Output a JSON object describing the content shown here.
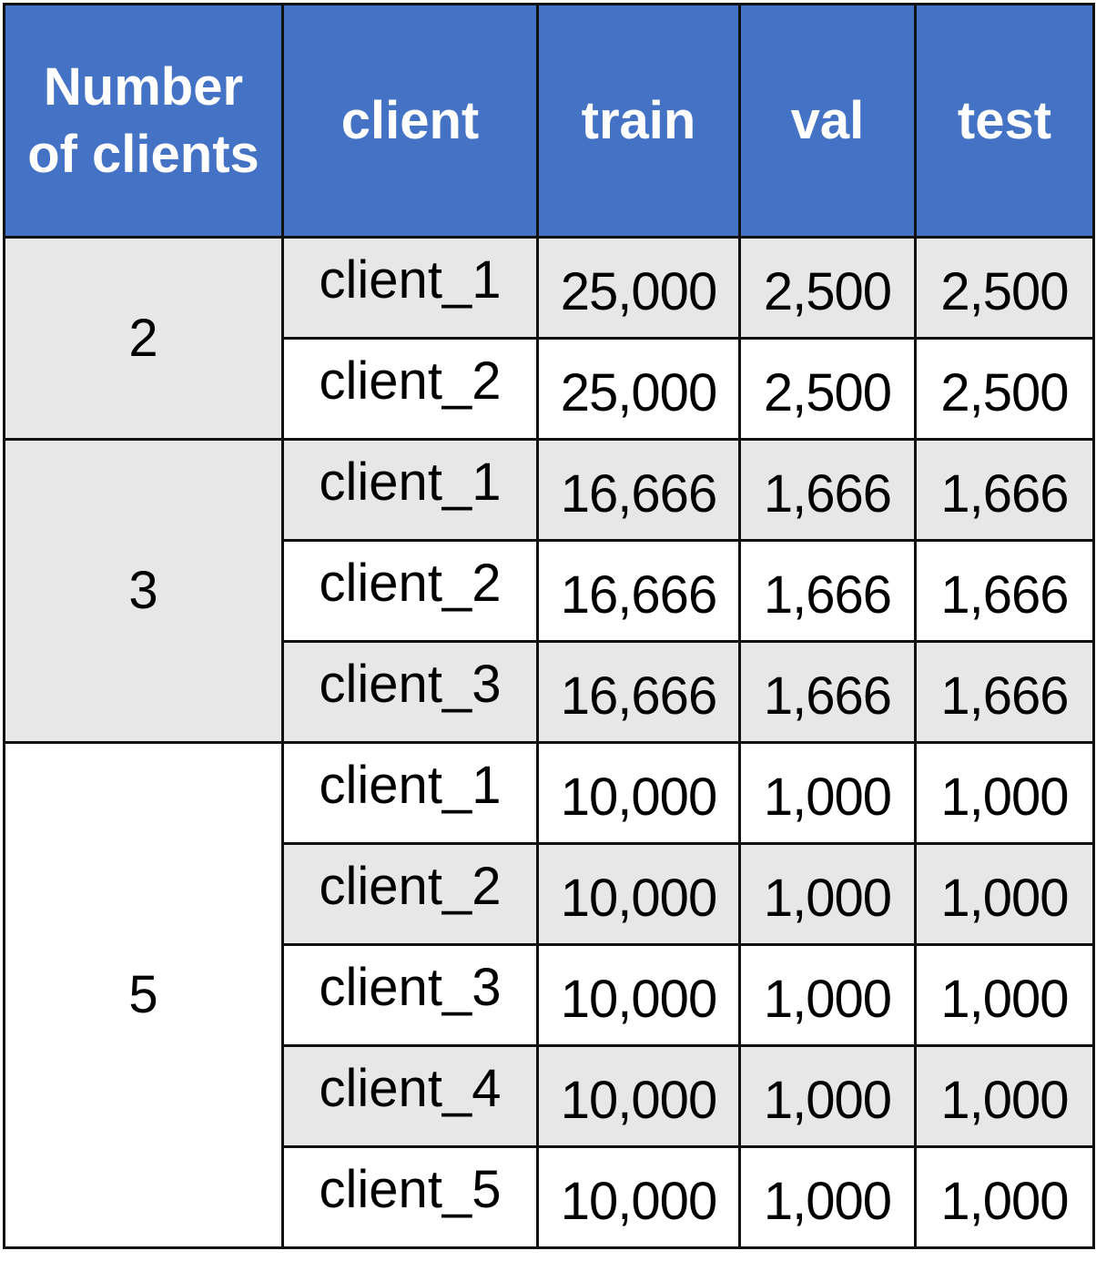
{
  "header": {
    "number_of_clients": "Number of clients",
    "client": "client",
    "train": "train",
    "val": "val",
    "test": "test"
  },
  "groups": [
    {
      "number": "2",
      "rows": [
        {
          "client": "client_1",
          "train": "25,000",
          "val": "2,500",
          "test": "2,500"
        },
        {
          "client": "client_2",
          "train": "25,000",
          "val": "2,500",
          "test": "2,500"
        }
      ]
    },
    {
      "number": "3",
      "rows": [
        {
          "client": "client_1",
          "train": "16,666",
          "val": "1,666",
          "test": "1,666"
        },
        {
          "client": "client_2",
          "train": "16,666",
          "val": "1,666",
          "test": "1,666"
        },
        {
          "client": "client_3",
          "train": "16,666",
          "val": "1,666",
          "test": "1,666"
        }
      ]
    },
    {
      "number": "5",
      "rows": [
        {
          "client": "client_1",
          "train": "10,000",
          "val": "1,000",
          "test": "1,000"
        },
        {
          "client": "client_2",
          "train": "10,000",
          "val": "1,000",
          "test": "1,000"
        },
        {
          "client": "client_3",
          "train": "10,000",
          "val": "1,000",
          "test": "1,000"
        },
        {
          "client": "client_4",
          "train": "10,000",
          "val": "1,000",
          "test": "1,000"
        },
        {
          "client": "client_5",
          "train": "10,000",
          "val": "1,000",
          "test": "1,000"
        }
      ]
    }
  ],
  "colors": {
    "header_bg": "#4472c4",
    "header_text": "#ffffff",
    "shade_bg": "#e7e7e7",
    "border": "#111111"
  }
}
